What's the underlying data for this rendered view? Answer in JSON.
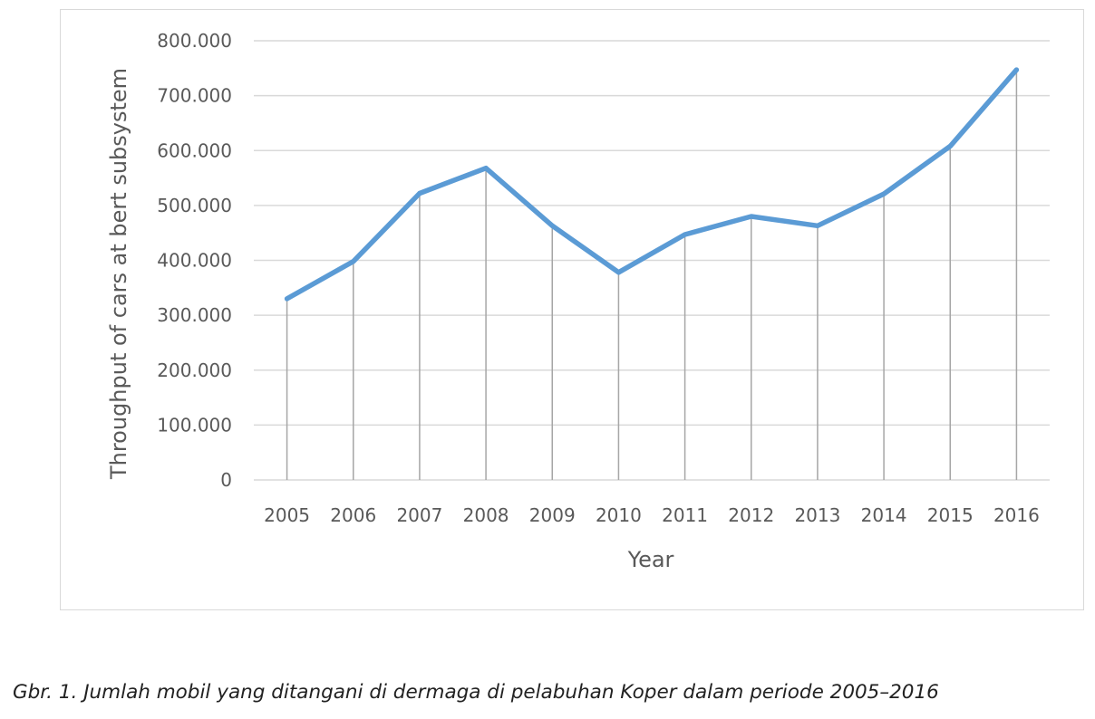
{
  "chart_data": {
    "type": "line",
    "categories": [
      "2005",
      "2006",
      "2007",
      "2008",
      "2009",
      "2010",
      "2011",
      "2012",
      "2013",
      "2014",
      "2015",
      "2016"
    ],
    "values": [
      330000,
      398000,
      522000,
      568000,
      463000,
      378000,
      447000,
      480000,
      463000,
      521000,
      608000,
      747000
    ],
    "ylim": [
      0,
      800000
    ],
    "yticks": [
      0,
      100000,
      200000,
      300000,
      400000,
      500000,
      600000,
      700000,
      800000
    ],
    "ytick_labels": [
      "0",
      "100.000",
      "200.000",
      "300.000",
      "400.000",
      "500.000",
      "600.000",
      "700.000",
      "800.000"
    ],
    "xlabel": "Year",
    "ylabel": "Throughput of cars at bert subsystem",
    "grid": true,
    "drop_lines": true,
    "line_color": "#5b9bd5",
    "grid_color": "#d9d9d9",
    "drop_line_color": "#a6a6a6"
  },
  "caption": "Gbr. 1. Jumlah mobil yang ditangani di dermaga di pelabuhan Koper dalam periode 2005–2016"
}
